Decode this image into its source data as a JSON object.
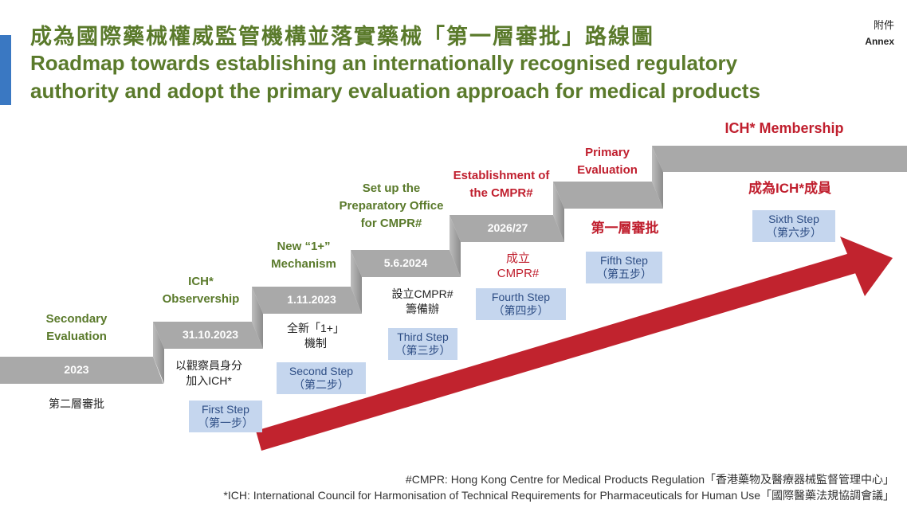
{
  "annex": {
    "zh": "附件",
    "en": "Annex"
  },
  "title": {
    "zh": "成為國際藥械權威監管機構並落實藥械「第一層審批」路線圖",
    "en": "Roadmap towards establishing an internationally recognised regulatory authority and adopt the primary evaluation approach for medical products"
  },
  "colors": {
    "title_green": "#5a7a2b",
    "accent_red": "#c01f2e",
    "stair_grey": "#a6a6a6",
    "step_box": "#c5d6ee",
    "arrow": "#c1232e"
  },
  "milestones": [
    {
      "heading_lines": [
        "Secondary",
        "Evaluation"
      ],
      "date": "2023",
      "zh": [
        "第二層審批"
      ],
      "step": null,
      "step_zh": null
    },
    {
      "heading_lines": [
        "ICH*",
        "Observership"
      ],
      "date": "31.10.2023",
      "zh": [
        "以觀察員身分",
        "加入ICH*"
      ],
      "step": "First Step",
      "step_zh": "（第一步）"
    },
    {
      "heading_lines": [
        "New “1+”",
        "Mechanism"
      ],
      "date": "1.11.2023",
      "zh": [
        "全新「1+」",
        "機制"
      ],
      "step": "Second Step",
      "step_zh": "（第二步）"
    },
    {
      "heading_lines": [
        "Set up the",
        "Preparatory Office",
        "for CMPR#"
      ],
      "date": "5.6.2024",
      "zh": [
        "設立CMPR#",
        "籌備辦"
      ],
      "step": "Third Step",
      "step_zh": "（第三步）"
    },
    {
      "heading_lines": [
        "Establishment of",
        "the CMPR#"
      ],
      "date": "2026/27",
      "zh": [
        "成立",
        "CMPR#"
      ],
      "step": "Fourth Step",
      "step_zh": "（第四步）"
    },
    {
      "heading_lines": [
        "Primary",
        "Evaluation"
      ],
      "date": "",
      "zh": [
        "第一層審批"
      ],
      "step": "Fifth Step",
      "step_zh": "（第五步）"
    },
    {
      "heading_lines": [
        "ICH* Membership"
      ],
      "date": "",
      "zh": [
        "成為ICH*成員"
      ],
      "step": "Sixth Step",
      "step_zh": "（第六步）"
    }
  ],
  "footnotes": [
    "#CMPR: Hong Kong Centre for Medical Products Regulation「香港藥物及醫療器械監督管理中心」",
    "*ICH:  International Council for Harmonisation of Technical Requirements for Pharmaceuticals for Human Use「國際醫藥法規協調會議」"
  ]
}
